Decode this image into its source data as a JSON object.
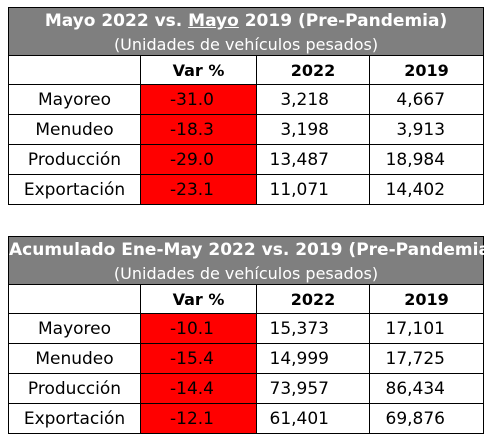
{
  "tables": [
    {
      "title_pre": "Mayo 2022 vs. ",
      "title_underlined": "Mayo",
      "title_post": " 2019 (Pre-Pandemia)",
      "subtitle": "(Unidades de vehículos pesados)",
      "headers": [
        "",
        "Var %",
        "2022",
        "2019"
      ],
      "rows": [
        {
          "label": "Mayoreo",
          "var": "-31.0",
          "y2022": "3,218",
          "y2019": "4,667"
        },
        {
          "label": "Menudeo",
          "var": "-18.3",
          "y2022": "3,198",
          "y2019": "3,913"
        },
        {
          "label": "Producción",
          "var": "-29.0",
          "y2022": "13,487",
          "y2019": "18,984"
        },
        {
          "label": "Exportación",
          "var": "-23.1",
          "y2022": "11,071",
          "y2019": "14,402"
        }
      ]
    },
    {
      "title": "Acumulado Ene-May 2022 vs. 2019 (Pre-Pandemia)",
      "subtitle": "(Unidades de vehículos pesados)",
      "headers": [
        "",
        "Var %",
        "2022",
        "2019"
      ],
      "rows": [
        {
          "label": "Mayoreo",
          "var": "-10.1",
          "y2022": "15,373",
          "y2019": "17,101"
        },
        {
          "label": "Menudeo",
          "var": "-15.4",
          "y2022": "14,999",
          "y2019": "17,725"
        },
        {
          "label": "Producción",
          "var": "-14.4",
          "y2022": "73,957",
          "y2019": "86,434"
        },
        {
          "label": "Exportación",
          "var": "-12.1",
          "y2022": "61,401",
          "y2019": "69,876"
        }
      ]
    }
  ],
  "colors": {
    "header_bg": "#7f7f7f",
    "negative_bg": "#ff0000",
    "text": "#000000"
  }
}
